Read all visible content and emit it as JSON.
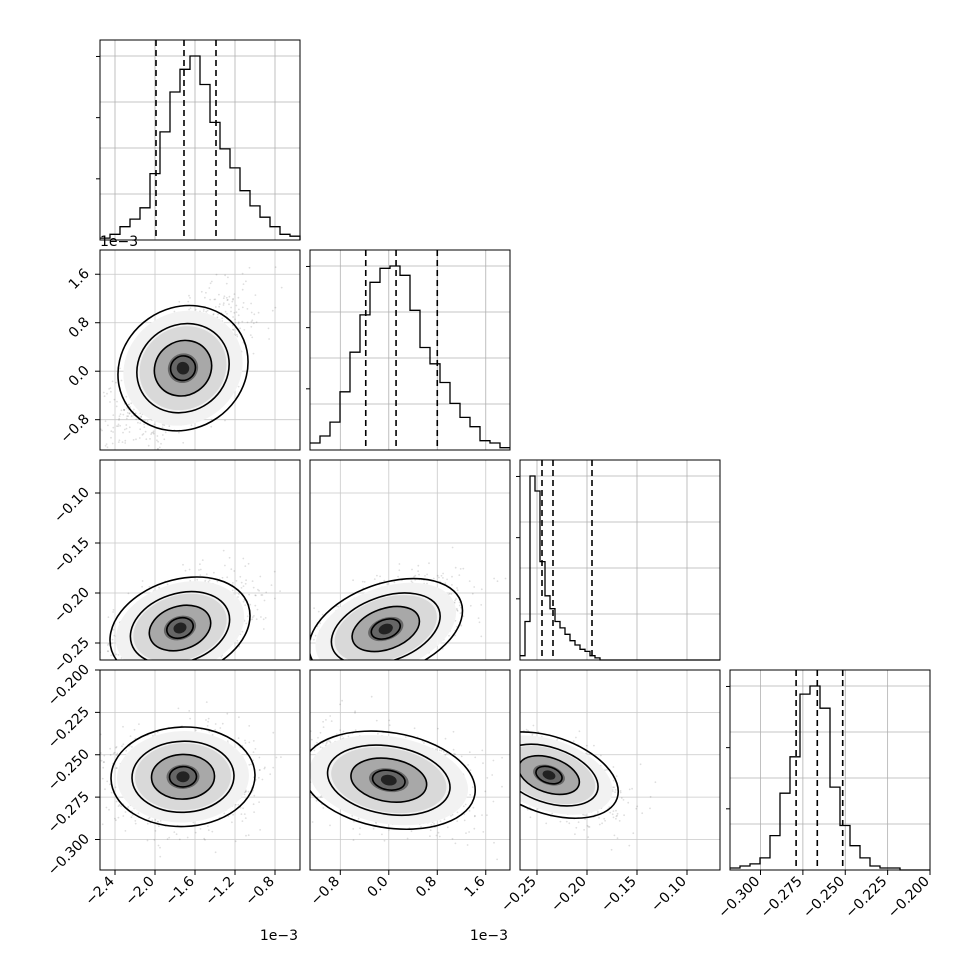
{
  "chart_data": {
    "type": "scatter",
    "title": "",
    "corner_layout": "lower-triangle 4x4",
    "grid": true,
    "variables": [
      {
        "index": 0,
        "range": [
          -0.00255,
          -0.00055
        ],
        "ticks": [
          "−2.4",
          "−2.0",
          "−1.6",
          "−1.2",
          "−0.8"
        ],
        "tick_values": [
          -0.0024,
          -0.002,
          -0.0016,
          -0.0012,
          -0.0008
        ],
        "offset_label": "1e−3",
        "quantiles": [
          -0.00199,
          -0.00171,
          -0.00139
        ]
      },
      {
        "index": 1,
        "range": [
          -0.0013,
          0.002
        ],
        "ticks": [
          "−0.8",
          "0.0",
          "0.8",
          "1.6"
        ],
        "tick_values": [
          -0.0008,
          0.0,
          0.0008,
          0.0016
        ],
        "offset_label": "1e−3",
        "quantiles": [
          -0.00038,
          0.00012,
          0.0008
        ]
      },
      {
        "index": 2,
        "range": [
          -0.267,
          -0.067
        ],
        "ticks": [
          "−0.25",
          "−0.20",
          "−0.15",
          "−0.10"
        ],
        "tick_values": [
          -0.25,
          -0.2,
          -0.15,
          -0.1
        ],
        "offset_label": "",
        "quantiles": [
          -0.245,
          -0.234,
          -0.195
        ]
      },
      {
        "index": 3,
        "range": [
          -0.318,
          -0.2
        ],
        "ticks": [
          "−0.300",
          "−0.275",
          "−0.250",
          "−0.225",
          "−0.200"
        ],
        "tick_values": [
          -0.3,
          -0.275,
          -0.25,
          -0.225,
          -0.2
        ],
        "offset_label": "",
        "quantiles": [
          -0.279,
          -0.2665,
          -0.2515
        ]
      }
    ],
    "histograms": [
      {
        "var": 0,
        "bin_edges_start": -0.00255,
        "bin_width": 0.0001,
        "counts": [
          1,
          3,
          7,
          11,
          17,
          35,
          57,
          78,
          90,
          97,
          82,
          62,
          48,
          38,
          26,
          18,
          12,
          7,
          3,
          2,
          0
        ]
      },
      {
        "var": 1,
        "bin_edges_start": -0.0013,
        "bin_width": 0.000165,
        "counts": [
          3,
          6,
          12,
          25,
          42,
          58,
          72,
          78,
          79,
          75,
          60,
          44,
          37,
          29,
          20,
          14,
          10,
          4,
          3,
          1
        ]
      },
      {
        "var": 2,
        "bin_edges_start": -0.267,
        "bin_width": 0.005,
        "counts": [
          2,
          18,
          86,
          79,
          46,
          30,
          24,
          18,
          15,
          12,
          9,
          7,
          5,
          4,
          2,
          1,
          0,
          0,
          0,
          0,
          0,
          0,
          0,
          0,
          0,
          0,
          0,
          0,
          0,
          0,
          0,
          0,
          0,
          0,
          0,
          0,
          0,
          0,
          0,
          0
        ]
      },
      {
        "var": 3,
        "bin_edges_start": -0.318,
        "bin_width": 0.0059,
        "counts": [
          1,
          2,
          3,
          6,
          17,
          38,
          56,
          87,
          91,
          80,
          41,
          22,
          12,
          6,
          2,
          1,
          1,
          0,
          0,
          0
        ]
      }
    ],
    "pairs": [
      {
        "x": 0,
        "y": 1,
        "center": [
          -0.00172,
          5e-05
        ],
        "sd": [
          0.00028,
          0.00052
        ],
        "corr": 0.62
      },
      {
        "x": 0,
        "y": 2,
        "center": [
          -0.00175,
          -0.235
        ],
        "sd": [
          0.0003,
          0.022
        ],
        "corr": 0.45
      },
      {
        "x": 1,
        "y": 2,
        "center": [
          -5e-05,
          -0.236
        ],
        "sd": [
          0.00055,
          0.022
        ],
        "corr": 0.55
      },
      {
        "x": 0,
        "y": 3,
        "center": [
          -0.00172,
          -0.263
        ],
        "sd": [
          0.0003,
          0.012
        ],
        "corr": 0.05
      },
      {
        "x": 1,
        "y": 3,
        "center": [
          0.0,
          -0.265
        ],
        "sd": [
          0.0006,
          0.012
        ],
        "corr": -0.3
      },
      {
        "x": 2,
        "y": 3,
        "center": [
          -0.238,
          -0.262
        ],
        "sd": [
          0.03,
          0.011
        ],
        "corr": -0.55
      }
    ]
  }
}
